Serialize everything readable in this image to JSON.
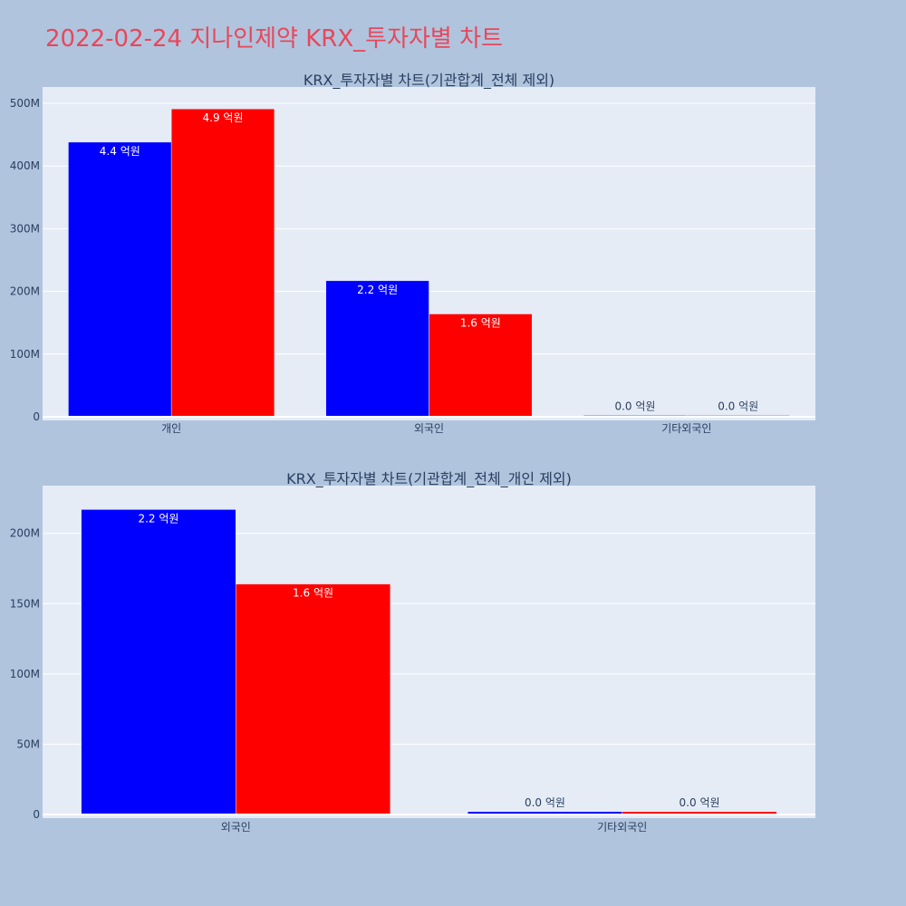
{
  "title": "2022-02-24 지나인제약 KRX_투자자별 차트",
  "colors": {
    "background": "#b0c4de",
    "plot_background": "#e5ecf6",
    "title": "#e8475b",
    "series_a": "#0000ff",
    "series_b": "#ff0000"
  },
  "chart_data": [
    {
      "type": "bar",
      "title": "KRX_투자자별 차트(기관합계_전체 제외)",
      "categories": [
        "개인",
        "외국인",
        "기타외국인"
      ],
      "series": [
        {
          "color": "#0000ff",
          "values": [
            438000000,
            217000000,
            2000000
          ],
          "labels": [
            "4.4 억원",
            "2.2 억원",
            "0.0 억원"
          ]
        },
        {
          "color": "#ff0000",
          "values": [
            491000000,
            164000000,
            2000000
          ],
          "labels": [
            "4.9 억원",
            "1.6 억원",
            "0.0 억원"
          ]
        }
      ],
      "ylim": [
        0,
        500000000
      ],
      "yticks": [
        0,
        100000000,
        200000000,
        300000000,
        400000000,
        500000000
      ],
      "ytick_labels": [
        "0",
        "100M",
        "200M",
        "300M",
        "400M",
        "500M"
      ],
      "grid": true
    },
    {
      "type": "bar",
      "title": "KRX_투자자별 차트(기관합계_전체_개인 제외)",
      "categories": [
        "외국인",
        "기타외국인"
      ],
      "series": [
        {
          "color": "#0000ff",
          "values": [
            217000000,
            2000000
          ],
          "labels": [
            "2.2 억원",
            "0.0 억원"
          ]
        },
        {
          "color": "#ff0000",
          "values": [
            164000000,
            2000000
          ],
          "labels": [
            "1.6 억원",
            "0.0 억원"
          ]
        }
      ],
      "ylim": [
        0,
        200000000
      ],
      "yticks": [
        0,
        50000000,
        100000000,
        150000000,
        200000000
      ],
      "ytick_labels": [
        "0",
        "50M",
        "100M",
        "150M",
        "200M"
      ],
      "grid": true
    }
  ]
}
